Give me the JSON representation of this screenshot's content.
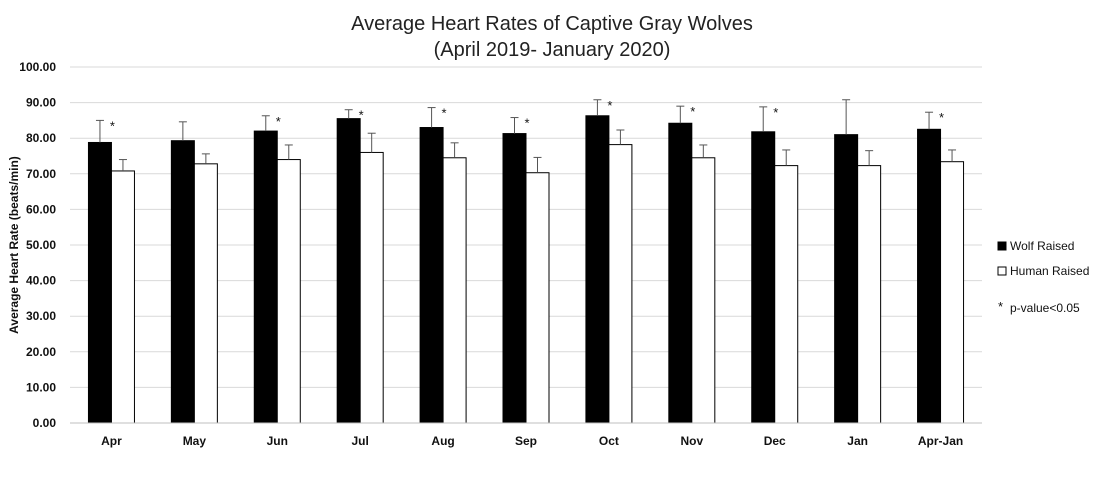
{
  "chart_data": {
    "type": "bar",
    "title_lines": [
      "Average Heart Rates of Captive Gray Wolves",
      "(April 2019- January 2020)"
    ],
    "ylabel": "Average Heart Rate (beats/min)",
    "xlabel": "",
    "ylim": [
      0,
      100
    ],
    "ytick_labels": [
      "0.00",
      "10.00",
      "20.00",
      "30.00",
      "40.00",
      "50.00",
      "60.00",
      "70.00",
      "80.00",
      "90.00",
      "100.00"
    ],
    "grid": "horizontal",
    "legend_position": "right",
    "categories": [
      "Apr",
      "May",
      "Jun",
      "Jul",
      "Aug",
      "Sep",
      "Oct",
      "Nov",
      "Dec",
      "Jan",
      "Apr-Jan"
    ],
    "series": [
      {
        "name": "Wolf Raised",
        "color": "#000000",
        "values": [
          78.8,
          79.3,
          82.0,
          85.5,
          83.0,
          81.3,
          86.3,
          84.2,
          81.8,
          81.0,
          82.5
        ],
        "error_upper": [
          85.0,
          84.6,
          86.3,
          88.0,
          88.6,
          85.8,
          90.8,
          89.0,
          88.8,
          90.8,
          87.3
        ]
      },
      {
        "name": "Human Raised",
        "color": "#ffffff",
        "values": [
          70.8,
          72.8,
          74.0,
          76.0,
          74.5,
          70.3,
          78.2,
          74.5,
          72.3,
          72.3,
          73.4
        ],
        "error_upper": [
          74.0,
          75.6,
          78.1,
          81.4,
          78.7,
          74.6,
          82.3,
          78.1,
          76.7,
          76.5,
          76.7
        ]
      }
    ],
    "significant": [
      true,
      false,
      true,
      true,
      true,
      true,
      true,
      true,
      true,
      false,
      true
    ],
    "significance_marker": "*",
    "significance_note": "p-value<0.05"
  }
}
